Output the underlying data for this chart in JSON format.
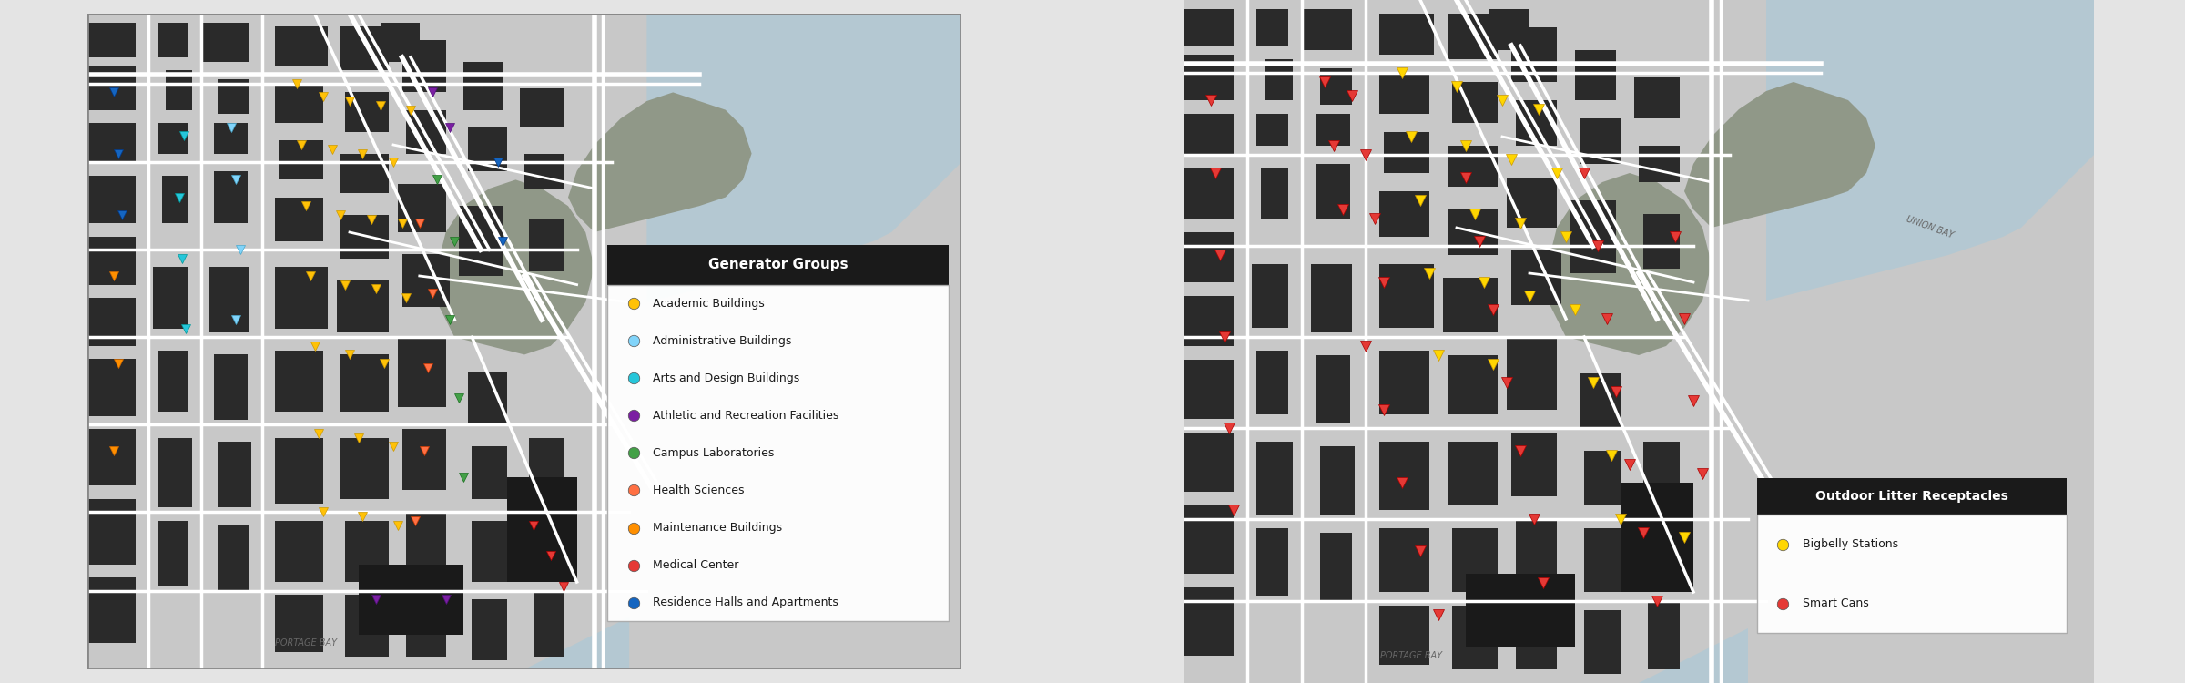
{
  "left_legend_items": [
    {
      "label": "Academic Buildings",
      "color": "#FFC107"
    },
    {
      "label": "Administrative Buildings",
      "color": "#81D4FA"
    },
    {
      "label": "Arts and Design Buildings",
      "color": "#4FC3F7"
    },
    {
      "label": "Athletic and Recreation Facilities",
      "color": "#7B1FA2"
    },
    {
      "label": "Campus Laboratories",
      "color": "#43A047"
    },
    {
      "label": "Health Sciences",
      "color": "#FF7043"
    },
    {
      "label": "Maintenance Buildings",
      "color": "#FF8F00"
    },
    {
      "label": "Medical Center",
      "color": "#E53935"
    },
    {
      "label": "Residence Halls and Apartments",
      "color": "#1565C0"
    }
  ],
  "right_legend_items": [
    {
      "label": "Bigbelly Stations",
      "color": "#FFD600"
    },
    {
      "label": "Smart Cans",
      "color": "#E53935"
    }
  ],
  "left_legend_title": "Generator Groups",
  "right_legend_title": "Outdoor Litter Receptacles",
  "fig_bg": "#e4e4e4",
  "map_outer_bg": "#d8d8d8",
  "map_street_bg": "#c8c8c8",
  "building_dark": "#2a2a2a",
  "building_med": "#555555",
  "road_color": "#ffffff",
  "water_color": "#b8c8d4",
  "park_color": "#8a9880",
  "legend_title_bg": "#1a1a1a",
  "legend_body_bg": "#ffffff",
  "figsize": [
    24.0,
    7.5
  ],
  "dpi": 100
}
